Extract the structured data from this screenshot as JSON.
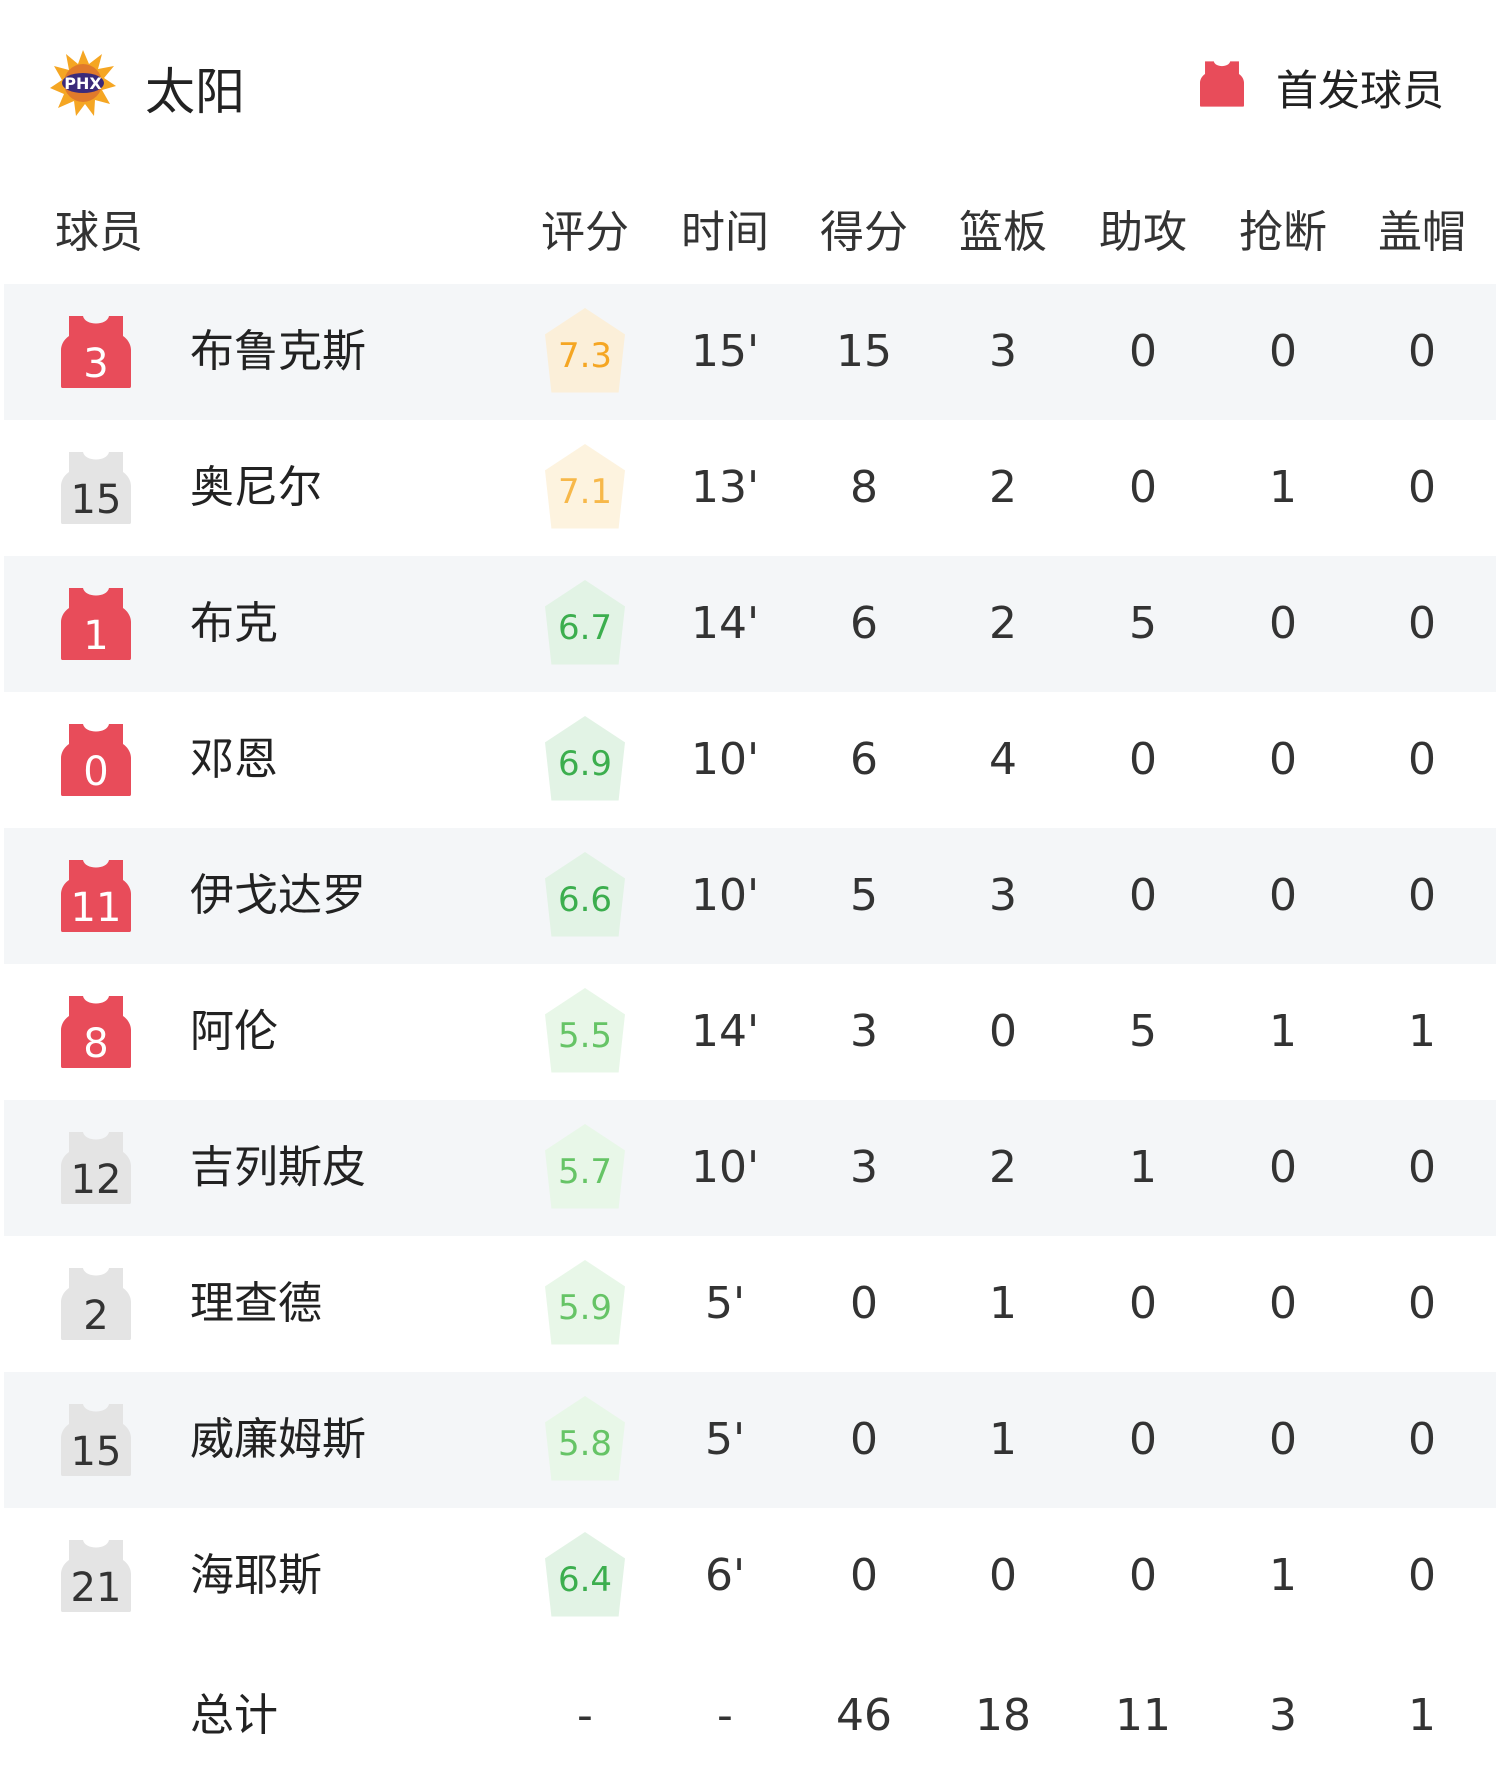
{
  "header": {
    "team": "太阳",
    "logo_text": "PHX",
    "legend": "首发球员",
    "starter_color": "#e84c5a",
    "bench_color": "#e4e4e4"
  },
  "columns": [
    "球员",
    "评分",
    "时间",
    "得分",
    "篮板",
    "助攻",
    "抢断",
    "盖帽"
  ],
  "players": [
    {
      "num": "3",
      "name": "布鲁克斯",
      "starter": true,
      "rating": "7.3",
      "tone": "orange",
      "min": "15'",
      "pts": "15",
      "reb": "3",
      "ast": "0",
      "stl": "0",
      "blk": "0"
    },
    {
      "num": "15",
      "name": "奥尼尔",
      "starter": false,
      "rating": "7.1",
      "tone": "orange-light",
      "min": "13'",
      "pts": "8",
      "reb": "2",
      "ast": "0",
      "stl": "1",
      "blk": "0"
    },
    {
      "num": "1",
      "name": "布克",
      "starter": true,
      "rating": "6.7",
      "tone": "green",
      "min": "14'",
      "pts": "6",
      "reb": "2",
      "ast": "5",
      "stl": "0",
      "blk": "0"
    },
    {
      "num": "0",
      "name": "邓恩",
      "starter": true,
      "rating": "6.9",
      "tone": "green",
      "min": "10'",
      "pts": "6",
      "reb": "4",
      "ast": "0",
      "stl": "0",
      "blk": "0"
    },
    {
      "num": "11",
      "name": "伊戈达罗",
      "starter": true,
      "rating": "6.6",
      "tone": "green",
      "min": "10'",
      "pts": "5",
      "reb": "3",
      "ast": "0",
      "stl": "0",
      "blk": "0"
    },
    {
      "num": "8",
      "name": "阿伦",
      "starter": true,
      "rating": "5.5",
      "tone": "green-light",
      "min": "14'",
      "pts": "3",
      "reb": "0",
      "ast": "5",
      "stl": "1",
      "blk": "1"
    },
    {
      "num": "12",
      "name": "吉列斯皮",
      "starter": false,
      "rating": "5.7",
      "tone": "green-light",
      "min": "10'",
      "pts": "3",
      "reb": "2",
      "ast": "1",
      "stl": "0",
      "blk": "0"
    },
    {
      "num": "2",
      "name": "理查德",
      "starter": false,
      "rating": "5.9",
      "tone": "green-light",
      "min": "5'",
      "pts": "0",
      "reb": "1",
      "ast": "0",
      "stl": "0",
      "blk": "0"
    },
    {
      "num": "15",
      "name": "威廉姆斯",
      "starter": false,
      "rating": "5.8",
      "tone": "green-light",
      "min": "5'",
      "pts": "0",
      "reb": "1",
      "ast": "0",
      "stl": "0",
      "blk": "0"
    },
    {
      "num": "21",
      "name": "海耶斯",
      "starter": false,
      "rating": "6.4",
      "tone": "green",
      "min": "6'",
      "pts": "0",
      "reb": "0",
      "ast": "0",
      "stl": "1",
      "blk": "0"
    }
  ],
  "total": {
    "label": "总计",
    "rating": "-",
    "min": "-",
    "pts": "46",
    "reb": "18",
    "ast": "11",
    "stl": "3",
    "blk": "1"
  },
  "tones": {
    "orange": {
      "text": "#f5a623",
      "bg": "#fbefd9"
    },
    "orange-light": {
      "text": "#f7b84a",
      "bg": "#fdf3df"
    },
    "green": {
      "text": "#3cae4e",
      "bg": "#e2f3e5"
    },
    "green-light": {
      "text": "#66c466",
      "bg": "#e8f7e8"
    }
  }
}
